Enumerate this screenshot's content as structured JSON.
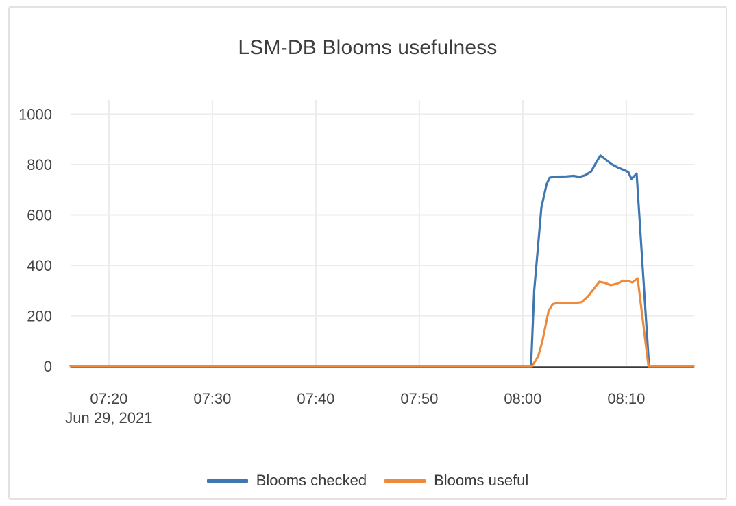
{
  "chart_data": {
    "type": "line",
    "title": "LSM-DB Blooms usefulness",
    "x_date": "Jun 29, 2021",
    "xlabel": "",
    "ylabel": "",
    "ylim": [
      0,
      1000
    ],
    "y_ticks": [
      0,
      200,
      400,
      600,
      800,
      1000
    ],
    "x_tick_labels": [
      "07:20",
      "07:30",
      "07:40",
      "07:50",
      "08:00",
      "08:10"
    ],
    "x_tick_minutes": [
      20,
      30,
      40,
      50,
      60,
      70
    ],
    "x_range_minutes": [
      16.3,
      76.5
    ],
    "grid": true,
    "legend_position": "bottom-center",
    "grid_color": "#ebebeb",
    "axis_color": "#37393b",
    "tick_color": "#444444",
    "series": [
      {
        "name": "Blooms checked",
        "color": "#3f77b1",
        "points": [
          [
            16.3,
            0
          ],
          [
            60.8,
            0
          ],
          [
            61.1,
            300
          ],
          [
            61.8,
            630
          ],
          [
            62.3,
            722
          ],
          [
            62.6,
            748
          ],
          [
            63.2,
            752
          ],
          [
            64.2,
            753
          ],
          [
            64.9,
            755
          ],
          [
            65.5,
            751
          ],
          [
            66.0,
            757
          ],
          [
            66.6,
            772
          ],
          [
            67.0,
            802
          ],
          [
            67.5,
            836
          ],
          [
            68.0,
            820
          ],
          [
            68.6,
            801
          ],
          [
            69.2,
            788
          ],
          [
            69.8,
            778
          ],
          [
            70.2,
            770
          ],
          [
            70.5,
            743
          ],
          [
            71.0,
            764
          ],
          [
            72.2,
            0
          ],
          [
            76.5,
            0
          ]
        ]
      },
      {
        "name": "Blooms useful",
        "color": "#ee8a3c",
        "points": [
          [
            16.3,
            0
          ],
          [
            60.9,
            0
          ],
          [
            61.5,
            40
          ],
          [
            61.9,
            100
          ],
          [
            62.5,
            220
          ],
          [
            62.9,
            246
          ],
          [
            63.3,
            250
          ],
          [
            64.3,
            250
          ],
          [
            65.1,
            251
          ],
          [
            65.7,
            254
          ],
          [
            66.3,
            277
          ],
          [
            66.9,
            308
          ],
          [
            67.4,
            335
          ],
          [
            67.9,
            331
          ],
          [
            68.5,
            321
          ],
          [
            69.1,
            327
          ],
          [
            69.7,
            339
          ],
          [
            70.3,
            336
          ],
          [
            70.6,
            332
          ],
          [
            71.1,
            348
          ],
          [
            72.15,
            0
          ],
          [
            76.5,
            0
          ]
        ]
      }
    ]
  }
}
